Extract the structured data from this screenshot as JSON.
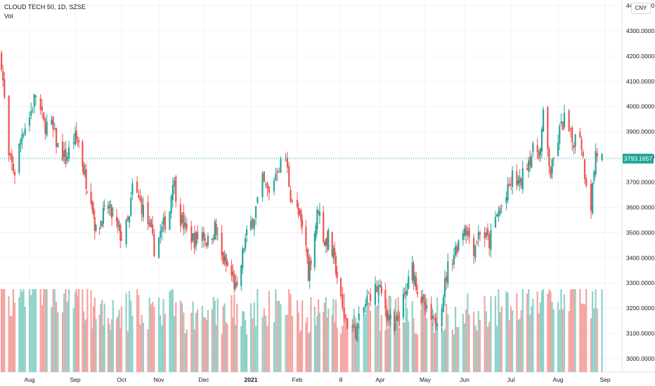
{
  "chart_data": {
    "type": "candlestick",
    "title": "CLOUD TECH 50, 1D, SZSE",
    "subtitle": "Vol",
    "currency": "CNY",
    "last_price": "3793.1657",
    "y_ticks": [
      "4400.0000",
      "4300.0000",
      "4200.0000",
      "4100.0000",
      "4000.0000",
      "3900.0000",
      "3800.0000",
      "3700.0000",
      "3600.0000",
      "3500.0000",
      "3400.0000",
      "3300.0000",
      "3200.0000",
      "3100.0000",
      "3000.0000"
    ],
    "ylim": [
      2950,
      4410
    ],
    "x_ticks": [
      "Aug",
      "Sep",
      "Oct",
      "Nov",
      "Dec",
      "2021",
      "Feb",
      "8",
      "Apr",
      "May",
      "Jun",
      "Jul",
      "Aug",
      "Sep"
    ],
    "grid": true,
    "colors": {
      "up": "#26a69a",
      "down": "#ef5350",
      "up_volume": "#8fd1c8",
      "down_volume": "#f5a3a1",
      "grid": "#f0f3fa",
      "axis_text": "#131722",
      "price_line": "#26a69a"
    },
    "close_path": [
      [
        "2020-07-15",
        4180
      ],
      [
        "2020-07-20",
        3790
      ],
      [
        "2020-07-24",
        3740
      ],
      [
        "2020-07-29",
        3900
      ],
      [
        "2020-08-03",
        3960
      ],
      [
        "2020-08-07",
        4050
      ],
      [
        "2020-08-12",
        3930
      ],
      [
        "2020-08-17",
        3920
      ],
      [
        "2020-08-21",
        3840
      ],
      [
        "2020-08-26",
        3790
      ],
      [
        "2020-08-31",
        3870
      ],
      [
        "2020-09-04",
        3860
      ],
      [
        "2020-09-09",
        3720
      ],
      [
        "2020-09-14",
        3650
      ],
      [
        "2020-09-18",
        3500
      ],
      [
        "2020-09-23",
        3560
      ],
      [
        "2020-09-28",
        3600
      ],
      [
        "2020-10-09",
        3480
      ],
      [
        "2020-10-14",
        3550
      ],
      [
        "2020-10-16",
        3680
      ],
      [
        "2020-10-21",
        3620
      ],
      [
        "2020-10-26",
        3540
      ],
      [
        "2020-10-30",
        3440
      ],
      [
        "2020-11-04",
        3510
      ],
      [
        "2020-11-09",
        3590
      ],
      [
        "2020-11-11",
        3720
      ],
      [
        "2020-11-16",
        3560
      ],
      [
        "2020-11-20",
        3500
      ],
      [
        "2020-11-25",
        3470
      ],
      [
        "2020-11-30",
        3500
      ],
      [
        "2020-12-04",
        3460
      ],
      [
        "2020-12-09",
        3520
      ],
      [
        "2020-12-14",
        3400
      ],
      [
        "2020-12-21",
        3330
      ],
      [
        "2020-12-25",
        3260
      ],
      [
        "2020-12-30",
        3450
      ],
      [
        "2021-01-06",
        3570
      ],
      [
        "2021-01-11",
        3700
      ],
      [
        "2021-01-15",
        3650
      ],
      [
        "2021-01-20",
        3760
      ],
      [
        "2021-01-25",
        3790
      ],
      [
        "2021-01-28",
        3650
      ],
      [
        "2021-02-03",
        3550
      ],
      [
        "2021-02-08",
        3450
      ],
      [
        "2021-02-10",
        3340
      ],
      [
        "2021-02-18",
        3600
      ],
      [
        "2021-02-23",
        3460
      ],
      [
        "2021-02-26",
        3480
      ],
      [
        "2021-03-04",
        3360
      ],
      [
        "2021-03-09",
        3190
      ],
      [
        "2021-03-12",
        3140
      ],
      [
        "2021-03-17",
        3110
      ],
      [
        "2021-03-22",
        3200
      ],
      [
        "2021-03-26",
        3260
      ],
      [
        "2021-03-31",
        3280
      ],
      [
        "2021-04-06",
        3190
      ],
      [
        "2021-04-12",
        3100
      ],
      [
        "2021-04-16",
        3180
      ],
      [
        "2021-04-21",
        3260
      ],
      [
        "2021-04-26",
        3360
      ],
      [
        "2021-04-30",
        3280
      ],
      [
        "2021-05-06",
        3190
      ],
      [
        "2021-05-12",
        3130
      ],
      [
        "2021-05-17",
        3230
      ],
      [
        "2021-05-21",
        3360
      ],
      [
        "2021-05-27",
        3450
      ],
      [
        "2021-06-01",
        3530
      ],
      [
        "2021-06-07",
        3440
      ],
      [
        "2021-06-11",
        3510
      ],
      [
        "2021-06-17",
        3460
      ],
      [
        "2021-06-22",
        3570
      ],
      [
        "2021-06-28",
        3640
      ],
      [
        "2021-07-02",
        3720
      ],
      [
        "2021-07-07",
        3690
      ],
      [
        "2021-07-12",
        3780
      ],
      [
        "2021-07-16",
        3820
      ],
      [
        "2021-07-21",
        3830
      ],
      [
        "2021-07-23",
        3960
      ],
      [
        "2021-07-28",
        3730
      ],
      [
        "2021-08-03",
        3900
      ],
      [
        "2021-08-06",
        3950
      ],
      [
        "2021-08-11",
        3860
      ],
      [
        "2021-08-16",
        3900
      ],
      [
        "2021-08-19",
        3740
      ],
      [
        "2021-08-23",
        3610
      ],
      [
        "2021-08-26",
        3820
      ],
      [
        "2021-08-30",
        3793
      ]
    ]
  }
}
